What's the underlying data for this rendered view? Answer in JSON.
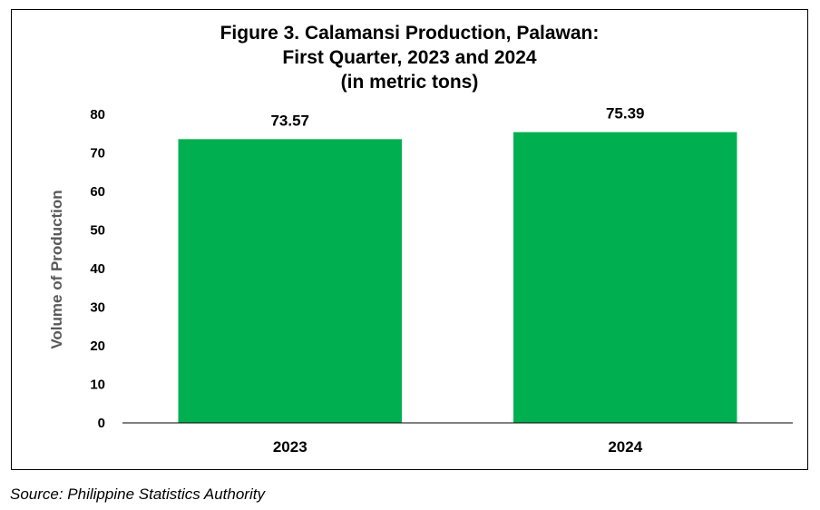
{
  "chart_data": {
    "type": "bar",
    "title_lines": [
      "Figure 3. Calamansi Production, Palawan:",
      "First Quarter, 2023 and 2024",
      "(in metric tons)"
    ],
    "categories": [
      "2023",
      "2024"
    ],
    "values": [
      73.57,
      75.39
    ],
    "value_labels": [
      "73.57",
      "75.39"
    ],
    "xlabel": "",
    "ylabel": "Volume of Production",
    "ylim": [
      0,
      80
    ],
    "yticks": [
      0,
      10,
      20,
      30,
      40,
      50,
      60,
      70,
      80
    ],
    "bar_color": "#00B050",
    "grid": false,
    "legend": "none"
  },
  "source": "Source: Philippine Statistics Authority"
}
